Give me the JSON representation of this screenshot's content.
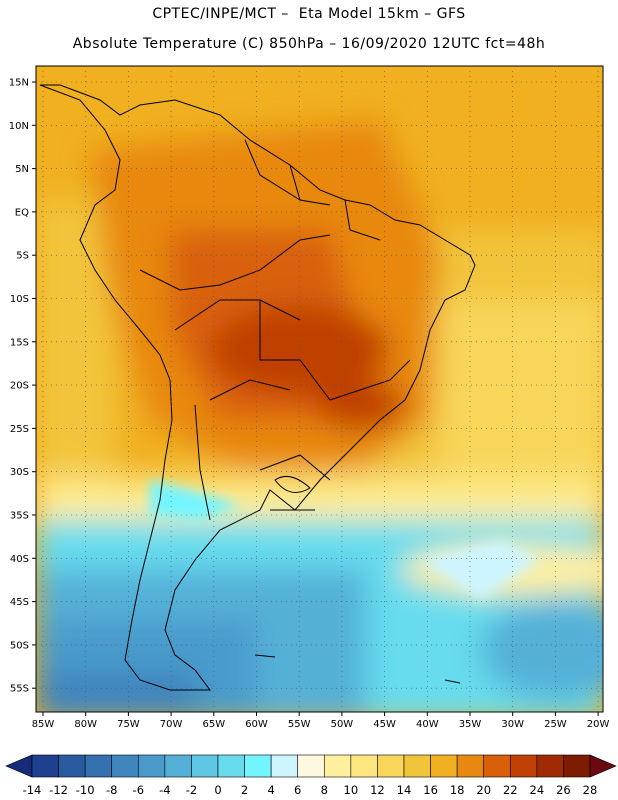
{
  "header": {
    "line1": "CPTEC/INPE/MCT –  Eta Model 15km – GFS",
    "line2": "Absolute Temperature (C) 850hPa – 16/09/2020 12UTC fct=48h"
  },
  "axes": {
    "lat_labels": [
      "15N",
      "10N",
      "5N",
      "EQ",
      "5S",
      "10S",
      "15S",
      "20S",
      "25S",
      "30S",
      "35S",
      "40S",
      "45S",
      "50S",
      "55S"
    ],
    "lon_labels": [
      "85W",
      "80W",
      "75W",
      "70W",
      "65W",
      "60W",
      "55W",
      "50W",
      "45W",
      "40W",
      "35W",
      "30W",
      "25W",
      "20W"
    ]
  },
  "colorbar": {
    "labels": [
      "-14",
      "-12",
      "-10",
      "-8",
      "-6",
      "-4",
      "-2",
      "0",
      "2",
      "4",
      "6",
      "8",
      "10",
      "12",
      "14",
      "16",
      "18",
      "20",
      "22",
      "24",
      "26",
      "28"
    ],
    "colors": [
      "#1f3f8f",
      "#2a5aa0",
      "#3571b0",
      "#3f86bf",
      "#4a9bcc",
      "#55b0d8",
      "#5ec6e4",
      "#66dcee",
      "#73f5ff",
      "#cdf5ff",
      "#fff8e0",
      "#fff0a0",
      "#fde680",
      "#f8d65a",
      "#f2c43a",
      "#f0b020",
      "#e88810",
      "#d96008",
      "#c04006",
      "#a02a04",
      "#7e1c02"
    ],
    "low_color": "#162c78",
    "high_color": "#6a0a10"
  }
}
